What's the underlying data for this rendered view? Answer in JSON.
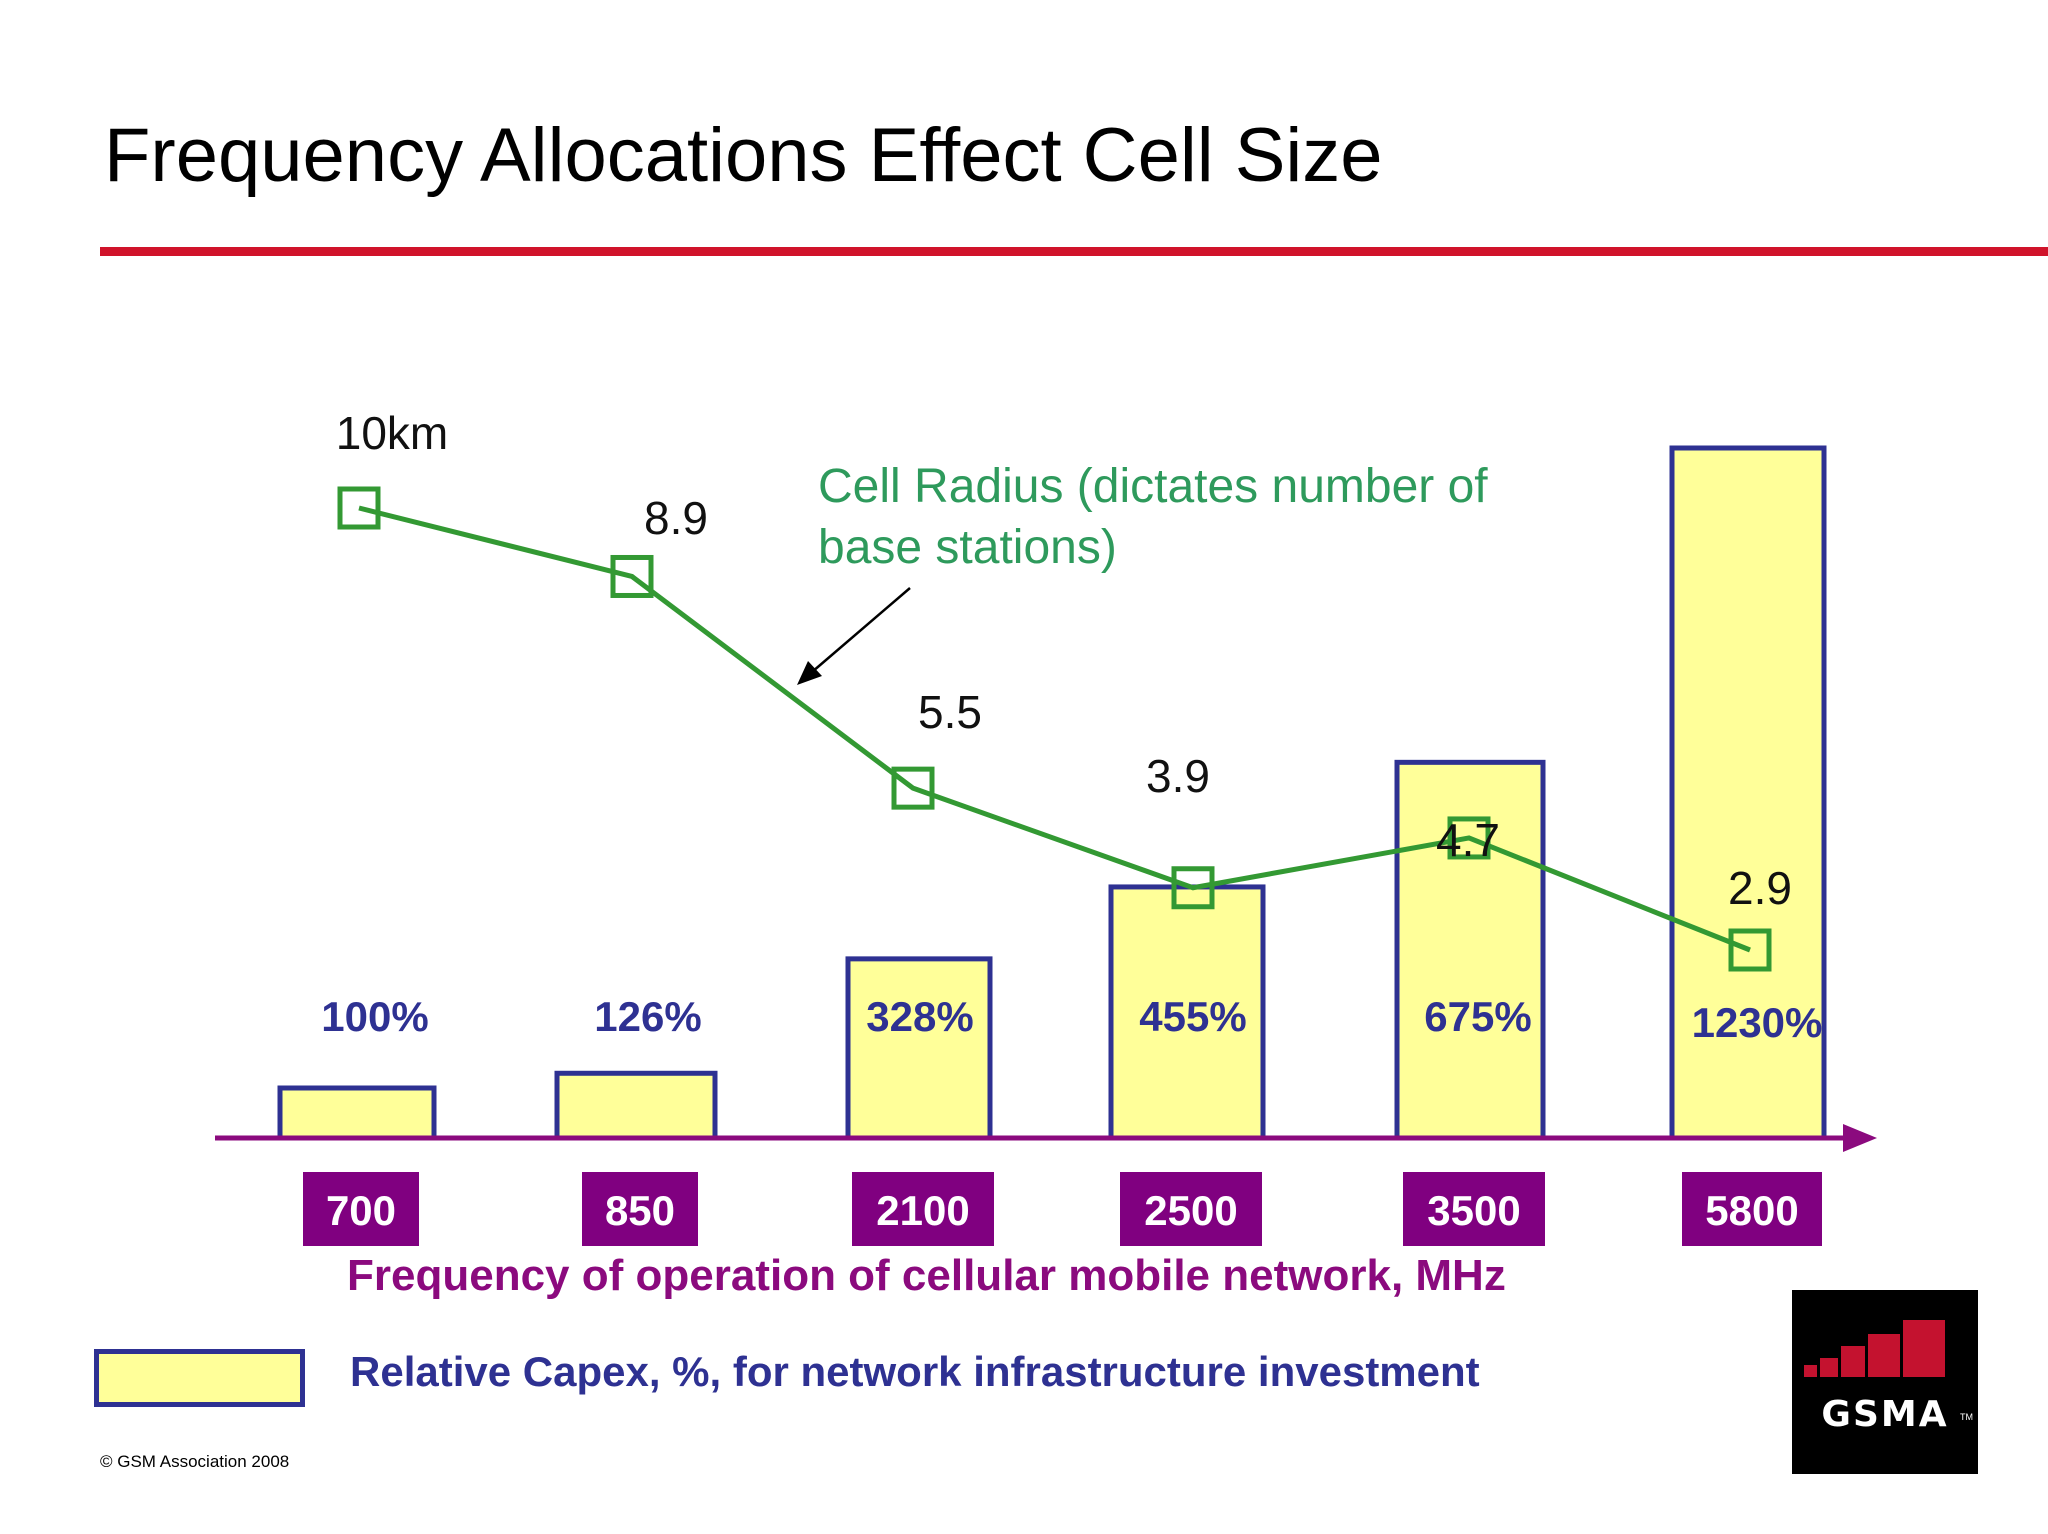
{
  "title": "Frequency Allocations Effect Cell Size",
  "chart_data": {
    "type": "bar+line",
    "categories": [
      "700",
      "850",
      "2100",
      "2500",
      "3500",
      "5800"
    ],
    "x_axis_label": "Frequency of operation of cellular mobile network, MHz",
    "series": [
      {
        "name": "Relative Capex, %, for network infrastructure investment",
        "type": "bar",
        "values": [
          100,
          126,
          328,
          455,
          675,
          1230
        ],
        "labels": [
          "100%",
          "126%",
          "328%",
          "455%",
          "675%",
          "1230%"
        ]
      },
      {
        "name": "Cell Radius (dictates number of base stations)",
        "type": "line",
        "unit": "km",
        "values": [
          10,
          8.9,
          5.5,
          3.9,
          4.7,
          2.9
        ],
        "labels": [
          "10km",
          "8.9",
          "5.5",
          "3.9",
          "4.7",
          "2.9"
        ]
      }
    ],
    "annotation_lines": [
      "Cell Radius (dictates number of",
      "base stations)"
    ],
    "colors": {
      "bar_fill": "#ffff99",
      "bar_border": "#2e3192",
      "bar_label": "#2e3192",
      "line": "#339933",
      "annotation": "#2e9a5c",
      "axis": "#8b0a7e",
      "tick_box": "#800080"
    }
  },
  "legend": {
    "label": "Relative Capex, %, for network infrastructure investment"
  },
  "footer": {
    "copyright": "© GSM Association 2008"
  },
  "logo": {
    "text": "GSMA",
    "tm": "TM"
  }
}
